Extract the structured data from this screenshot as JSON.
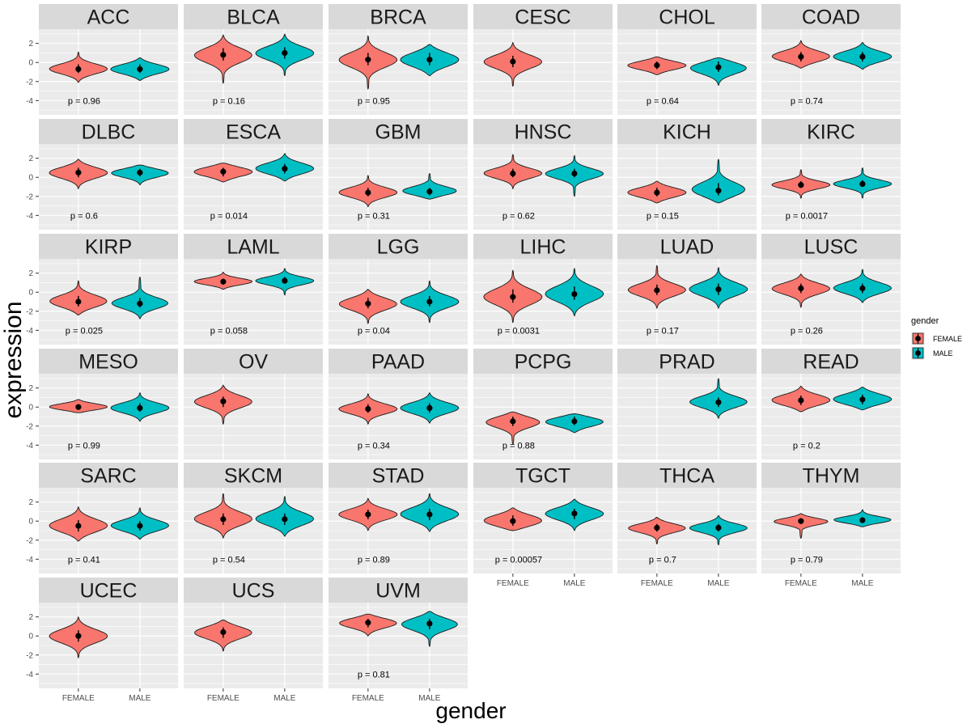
{
  "chart_data": {
    "type": "violin",
    "xlabel": "gender",
    "ylabel": "expression",
    "ylim": [
      -5.5,
      3.5
    ],
    "y_ticks": [
      2,
      0,
      -2,
      -4
    ],
    "x_categories": [
      "FEMALE",
      "MALE"
    ],
    "columns": 6,
    "legend": {
      "title": "gender",
      "position": "right",
      "entries": [
        {
          "label": "FEMALE",
          "color": "#F8766D"
        },
        {
          "label": "MALE",
          "color": "#00BFC4"
        }
      ]
    },
    "panel_background": "#EBEBEB",
    "strip_background": "#D9D9D9",
    "panels": [
      {
        "title": "ACC",
        "p": "p = 0.96",
        "female": {
          "median": -0.7,
          "min": -2.1,
          "max": 1.1,
          "q1": -1.1,
          "q3": -0.2
        },
        "male": {
          "median": -0.7,
          "min": -1.9,
          "max": 0.5,
          "q1": -1.1,
          "q3": -0.2
        }
      },
      {
        "title": "BLCA",
        "p": "p = 0.16",
        "female": {
          "median": 0.8,
          "min": -2.2,
          "max": 2.9,
          "q1": 0.2,
          "q3": 1.5
        },
        "male": {
          "median": 1.0,
          "min": -1.4,
          "max": 3.0,
          "q1": 0.4,
          "q3": 1.6
        }
      },
      {
        "title": "BRCA",
        "p": "p = 0.95",
        "female": {
          "median": 0.3,
          "min": -2.8,
          "max": 2.8,
          "q1": -0.3,
          "q3": 1.0
        },
        "male": {
          "median": 0.3,
          "min": -1.4,
          "max": 1.9,
          "q1": -0.3,
          "q3": 1.0
        }
      },
      {
        "title": "CESC",
        "p": "",
        "female": {
          "median": 0.1,
          "min": -2.5,
          "max": 2.1,
          "q1": -0.5,
          "q3": 0.7
        },
        "male": null
      },
      {
        "title": "CHOL",
        "p": "p = 0.64",
        "female": {
          "median": -0.3,
          "min": -1.3,
          "max": 0.6,
          "q1": -0.7,
          "q3": 0.1
        },
        "male": {
          "median": -0.5,
          "min": -2.4,
          "max": 0.5,
          "q1": -1.0,
          "q3": 0.1
        }
      },
      {
        "title": "COAD",
        "p": "p = 0.74",
        "female": {
          "median": 0.6,
          "min": -0.6,
          "max": 2.3,
          "q1": 0.1,
          "q3": 1.1
        },
        "male": {
          "median": 0.6,
          "min": -0.7,
          "max": 2.1,
          "q1": 0.1,
          "q3": 1.1
        }
      },
      {
        "title": "DLBC",
        "p": "p = 0.6",
        "female": {
          "median": 0.5,
          "min": -1.2,
          "max": 1.9,
          "q1": 0.0,
          "q3": 1.0
        },
        "male": {
          "median": 0.5,
          "min": -0.8,
          "max": 1.3,
          "q1": 0.1,
          "q3": 0.9
        }
      },
      {
        "title": "ESCA",
        "p": "p = 0.014",
        "female": {
          "median": 0.6,
          "min": -0.5,
          "max": 1.5,
          "q1": 0.1,
          "q3": 1.0
        },
        "male": {
          "median": 0.9,
          "min": -0.4,
          "max": 2.5,
          "q1": 0.4,
          "q3": 1.4
        }
      },
      {
        "title": "GBM",
        "p": "p = 0.31",
        "female": {
          "median": -1.6,
          "min": -3.1,
          "max": 0.2,
          "q1": -2.0,
          "q3": -1.1
        },
        "male": {
          "median": -1.5,
          "min": -2.3,
          "max": 0.4,
          "q1": -1.9,
          "q3": -1.1
        }
      },
      {
        "title": "HNSC",
        "p": "p = 0.62",
        "female": {
          "median": 0.4,
          "min": -1.2,
          "max": 2.4,
          "q1": 0.0,
          "q3": 0.9
        },
        "male": {
          "median": 0.4,
          "min": -2.0,
          "max": 2.3,
          "q1": 0.0,
          "q3": 0.9
        }
      },
      {
        "title": "KICH",
        "p": "p = 0.15",
        "female": {
          "median": -1.6,
          "min": -2.7,
          "max": -0.4,
          "q1": -2.0,
          "q3": -1.1
        },
        "male": {
          "median": -1.4,
          "min": -2.7,
          "max": 1.9,
          "q1": -1.9,
          "q3": -0.6
        }
      },
      {
        "title": "KIRC",
        "p": "p = 0.0017",
        "female": {
          "median": -0.8,
          "min": -2.2,
          "max": 0.8,
          "q1": -1.1,
          "q3": -0.4
        },
        "male": {
          "median": -0.7,
          "min": -2.2,
          "max": 1.0,
          "q1": -1.0,
          "q3": -0.3
        }
      },
      {
        "title": "KIRP",
        "p": "p = 0.025",
        "female": {
          "median": -1.0,
          "min": -2.4,
          "max": 1.2,
          "q1": -1.5,
          "q3": -0.4
        },
        "male": {
          "median": -1.2,
          "min": -2.8,
          "max": 1.6,
          "q1": -1.6,
          "q3": -0.6
        }
      },
      {
        "title": "LAML",
        "p": "p = 0.058",
        "female": {
          "median": 1.1,
          "min": 0.3,
          "max": 2.1,
          "q1": 0.8,
          "q3": 1.4
        },
        "male": {
          "median": 1.2,
          "min": -0.3,
          "max": 2.5,
          "q1": 0.9,
          "q3": 1.6
        }
      },
      {
        "title": "LGG",
        "p": "p = 0.04",
        "female": {
          "median": -1.2,
          "min": -3.3,
          "max": 0.3,
          "q1": -1.7,
          "q3": -0.6
        },
        "male": {
          "median": -1.0,
          "min": -3.2,
          "max": 1.2,
          "q1": -1.5,
          "q3": -0.4
        }
      },
      {
        "title": "LIHC",
        "p": "p = 0.0031",
        "female": {
          "median": -0.5,
          "min": -3.2,
          "max": 2.3,
          "q1": -1.1,
          "q3": 0.3
        },
        "male": {
          "median": -0.2,
          "min": -2.5,
          "max": 2.5,
          "q1": -0.8,
          "q3": 0.6
        }
      },
      {
        "title": "LUAD",
        "p": "p = 0.17",
        "female": {
          "median": 0.2,
          "min": -1.7,
          "max": 2.8,
          "q1": -0.3,
          "q3": 0.8
        },
        "male": {
          "median": 0.3,
          "min": -1.7,
          "max": 2.6,
          "q1": -0.3,
          "q3": 0.9
        }
      },
      {
        "title": "LUSC",
        "p": "p = 0.26",
        "female": {
          "median": 0.4,
          "min": -1.6,
          "max": 1.9,
          "q1": -0.1,
          "q3": 0.9
        },
        "male": {
          "median": 0.4,
          "min": -1.1,
          "max": 2.4,
          "q1": -0.1,
          "q3": 0.9
        }
      },
      {
        "title": "MESO",
        "p": "p = 0.99",
        "female": {
          "median": 0.0,
          "min": -0.6,
          "max": 0.8,
          "q1": -0.3,
          "q3": 0.3
        },
        "male": {
          "median": -0.1,
          "min": -1.5,
          "max": 1.5,
          "q1": -0.5,
          "q3": 0.4
        }
      },
      {
        "title": "OV",
        "p": "",
        "female": {
          "median": 0.6,
          "min": -1.8,
          "max": 2.3,
          "q1": 0.0,
          "q3": 1.1
        },
        "male": null
      },
      {
        "title": "PAAD",
        "p": "p = 0.34",
        "female": {
          "median": -0.2,
          "min": -1.8,
          "max": 1.4,
          "q1": -0.6,
          "q3": 0.3
        },
        "male": {
          "median": -0.1,
          "min": -1.7,
          "max": 1.5,
          "q1": -0.6,
          "q3": 0.4
        }
      },
      {
        "title": "PCPG",
        "p": "p = 0.88",
        "female": {
          "median": -1.5,
          "min": -3.9,
          "max": -0.5,
          "q1": -2.0,
          "q3": -1.0
        },
        "male": {
          "median": -1.5,
          "min": -2.7,
          "max": -0.7,
          "q1": -1.9,
          "q3": -1.0
        }
      },
      {
        "title": "PRAD",
        "p": "",
        "female": null,
        "male": {
          "median": 0.5,
          "min": -1.2,
          "max": 3.0,
          "q1": 0.0,
          "q3": 1.0
        }
      },
      {
        "title": "READ",
        "p": "p = 0.2",
        "female": {
          "median": 0.7,
          "min": -0.5,
          "max": 2.2,
          "q1": 0.2,
          "q3": 1.2
        },
        "male": {
          "median": 0.8,
          "min": -0.3,
          "max": 2.1,
          "q1": 0.3,
          "q3": 1.3
        }
      },
      {
        "title": "SARC",
        "p": "p = 0.41",
        "female": {
          "median": -0.5,
          "min": -2.1,
          "max": 1.5,
          "q1": -1.1,
          "q3": 0.1
        },
        "male": {
          "median": -0.5,
          "min": -1.9,
          "max": 1.4,
          "q1": -1.0,
          "q3": 0.0
        }
      },
      {
        "title": "SKCM",
        "p": "p = 0.54",
        "female": {
          "median": 0.2,
          "min": -1.8,
          "max": 2.9,
          "q1": -0.4,
          "q3": 0.8
        },
        "male": {
          "median": 0.2,
          "min": -1.6,
          "max": 2.6,
          "q1": -0.4,
          "q3": 0.8
        }
      },
      {
        "title": "STAD",
        "p": "p = 0.89",
        "female": {
          "median": 0.7,
          "min": -1.0,
          "max": 2.4,
          "q1": 0.2,
          "q3": 1.2
        },
        "male": {
          "median": 0.7,
          "min": -1.1,
          "max": 2.9,
          "q1": 0.1,
          "q3": 1.3
        }
      },
      {
        "title": "TGCT",
        "p": "p = 0.00057",
        "female": {
          "median": 0.0,
          "min": -1.0,
          "max": 1.4,
          "q1": -0.5,
          "q3": 0.6
        },
        "male": {
          "median": 0.8,
          "min": -1.0,
          "max": 2.3,
          "q1": 0.2,
          "q3": 1.3
        }
      },
      {
        "title": "THCA",
        "p": "p = 0.7",
        "female": {
          "median": -0.7,
          "min": -2.4,
          "max": 0.4,
          "q1": -1.1,
          "q3": -0.3
        },
        "male": {
          "median": -0.7,
          "min": -2.5,
          "max": 0.6,
          "q1": -1.1,
          "q3": -0.3
        }
      },
      {
        "title": "THYM",
        "p": "p = 0.79",
        "female": {
          "median": 0.0,
          "min": -1.8,
          "max": 0.8,
          "q1": -0.3,
          "q3": 0.3
        },
        "male": {
          "median": 0.1,
          "min": -0.6,
          "max": 1.2,
          "q1": -0.2,
          "q3": 0.4
        }
      },
      {
        "title": "UCEC",
        "p": "",
        "female": {
          "median": 0.0,
          "min": -2.3,
          "max": 2.0,
          "q1": -0.6,
          "q3": 0.6
        },
        "male": null
      },
      {
        "title": "UCS",
        "p": "",
        "female": {
          "median": 0.4,
          "min": -1.6,
          "max": 1.7,
          "q1": -0.2,
          "q3": 0.9
        },
        "male": null
      },
      {
        "title": "UVM",
        "p": "p = 0.81",
        "female": {
          "median": 1.4,
          "min": 0.0,
          "max": 2.3,
          "q1": 0.9,
          "q3": 1.8
        },
        "male": {
          "median": 1.3,
          "min": -1.1,
          "max": 2.6,
          "q1": 0.7,
          "q3": 1.8
        }
      }
    ]
  }
}
